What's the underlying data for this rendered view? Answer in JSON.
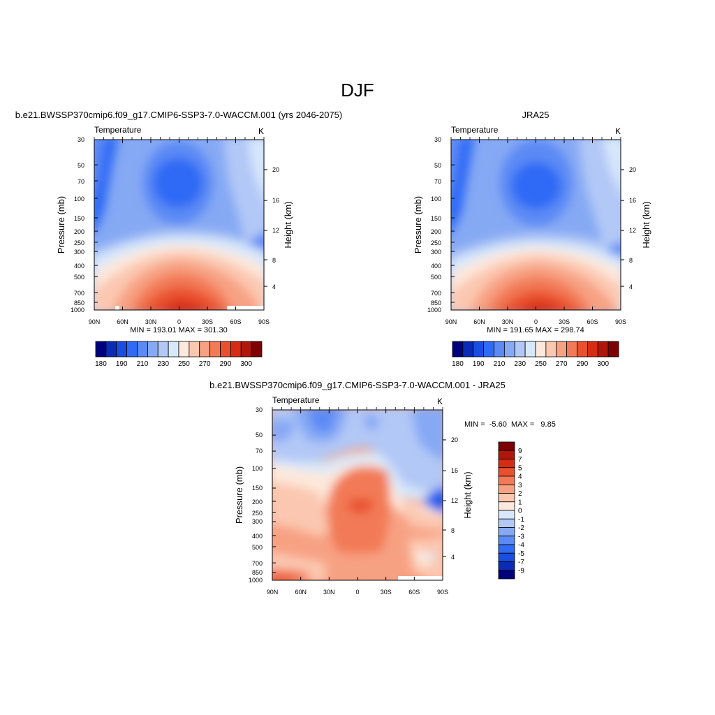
{
  "figure": {
    "title": "DJF"
  },
  "chart_data": [
    {
      "id": "model",
      "type": "heatmap",
      "title": "b.e21.BWSSP370cmip6.f09_g17.CMIP6-SSP3-7.0-WACCM.001 (yrs 2046-2075)",
      "left_label": "Temperature",
      "right_label": "K",
      "ylabel": "Pressure (mb)",
      "ylabel_right": "Height (km)",
      "x_ticks": [
        "90N",
        "60N",
        "30N",
        "0",
        "30S",
        "60S",
        "90S"
      ],
      "y_ticks": [
        "30",
        "50",
        "70",
        "100",
        "150",
        "200",
        "250",
        "300",
        "400",
        "500",
        "700",
        "850",
        "1000"
      ],
      "height_ticks": [
        "20",
        "16",
        "12",
        "8",
        "4"
      ],
      "stats": "MIN = 193.01  MAX = 301.30",
      "colorbar": {
        "orientation": "horizontal",
        "labels": [
          "180",
          "190",
          "210",
          "230",
          "250",
          "270",
          "290",
          "300"
        ],
        "colors": [
          "#00007f",
          "#0a2bb5",
          "#1a4ee0",
          "#2f6bf5",
          "#5b8af5",
          "#86a9f4",
          "#b2c8f6",
          "#d8e8fb",
          "#fde8db",
          "#fbc7b0",
          "#f7a183",
          "#f27a56",
          "#e9512e",
          "#d62c14",
          "#b0170b",
          "#7f0000"
        ]
      }
    },
    {
      "id": "obs",
      "type": "heatmap",
      "title": "JRA25",
      "left_label": "Temperature",
      "right_label": "K",
      "ylabel": "Pressure (mb)",
      "ylabel_right": "Height (km)",
      "x_ticks": [
        "90N",
        "60N",
        "30N",
        "0",
        "30S",
        "60S",
        "90S"
      ],
      "y_ticks": [
        "30",
        "50",
        "70",
        "100",
        "150",
        "200",
        "250",
        "300",
        "400",
        "500",
        "700",
        "850",
        "1000"
      ],
      "height_ticks": [
        "20",
        "16",
        "12",
        "8",
        "4"
      ],
      "stats": "MIN = 191.65  MAX = 298.74",
      "colorbar": {
        "orientation": "horizontal",
        "labels": [
          "180",
          "190",
          "210",
          "230",
          "250",
          "270",
          "290",
          "300"
        ],
        "colors": [
          "#00007f",
          "#0a2bb5",
          "#1a4ee0",
          "#2f6bf5",
          "#5b8af5",
          "#86a9f4",
          "#b2c8f6",
          "#d8e8fb",
          "#fde8db",
          "#fbc7b0",
          "#f7a183",
          "#f27a56",
          "#e9512e",
          "#d62c14",
          "#b0170b",
          "#7f0000"
        ]
      }
    },
    {
      "id": "diff",
      "type": "heatmap",
      "title": "b.e21.BWSSP370cmip6.f09_g17.CMIP6-SSP3-7.0-WACCM.001 - JRA25",
      "left_label": "Temperature",
      "right_label": "K",
      "ylabel": "Pressure (mb)",
      "ylabel_right": "Height (km)",
      "x_ticks": [
        "90N",
        "60N",
        "30N",
        "0",
        "30S",
        "60S",
        "90S"
      ],
      "y_ticks": [
        "30",
        "50",
        "70",
        "100",
        "150",
        "200",
        "250",
        "300",
        "400",
        "500",
        "700",
        "850",
        "1000"
      ],
      "height_ticks": [
        "20",
        "16",
        "12",
        "8",
        "4"
      ],
      "stats": "MIN =  -5.60  MAX =   9.85",
      "colorbar": {
        "orientation": "vertical",
        "labels": [
          "9",
          "7",
          "5",
          "4",
          "3",
          "2",
          "1",
          "0",
          "-1",
          "-2",
          "-3",
          "-4",
          "-5",
          "-7",
          "-9"
        ],
        "colors": [
          "#7f0000",
          "#b0170b",
          "#d62c14",
          "#e9512e",
          "#f27a56",
          "#f7a183",
          "#fbc7b0",
          "#fde8db",
          "#d8e8fb",
          "#b2c8f6",
          "#86a9f4",
          "#5b8af5",
          "#2f6bf5",
          "#1a4ee0",
          "#0a2bb5",
          "#00007f"
        ]
      }
    }
  ]
}
